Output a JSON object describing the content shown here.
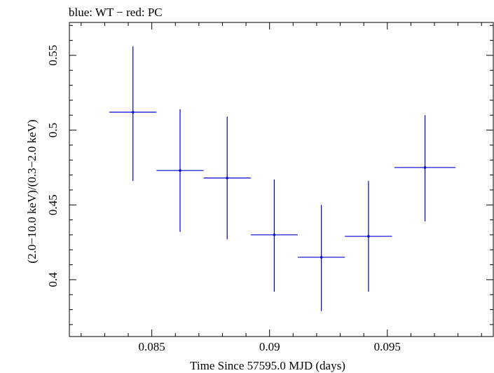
{
  "chart_data": {
    "type": "scatter",
    "title": "blue: WT − red: PC",
    "xlabel": "Time Since 57595.0 MJD (days)",
    "ylabel": "(2.0−10.0 keV)/(0.3−2.0 keV)",
    "xlim": [
      0.0815,
      0.0995
    ],
    "ylim": [
      0.362,
      0.572
    ],
    "x_ticks": [
      0.085,
      0.09,
      0.095
    ],
    "x_tick_labels": [
      "0.085",
      "0.09",
      "0.095"
    ],
    "y_ticks": [
      0.4,
      0.45,
      0.5,
      0.55
    ],
    "y_tick_labels": [
      "0.4",
      "0.45",
      "0.5",
      "0.55"
    ],
    "grid": false,
    "series": [
      {
        "color": "#0000cc",
        "points": [
          {
            "x": 0.0842,
            "y": 0.512,
            "xerr": 0.001,
            "ylo": 0.466,
            "yhi": 0.556
          },
          {
            "x": 0.0862,
            "y": 0.473,
            "xerr": 0.001,
            "ylo": 0.432,
            "yhi": 0.514
          },
          {
            "x": 0.0882,
            "y": 0.468,
            "xerr": 0.001,
            "ylo": 0.427,
            "yhi": 0.509
          },
          {
            "x": 0.0902,
            "y": 0.43,
            "xerr": 0.001,
            "ylo": 0.392,
            "yhi": 0.467
          },
          {
            "x": 0.0922,
            "y": 0.415,
            "xerr": 0.001,
            "ylo": 0.379,
            "yhi": 0.45
          },
          {
            "x": 0.0942,
            "y": 0.429,
            "xerr": 0.001,
            "ylo": 0.392,
            "yhi": 0.466
          },
          {
            "x": 0.0966,
            "y": 0.475,
            "xerr": 0.0013,
            "ylo": 0.439,
            "yhi": 0.51
          }
        ]
      }
    ]
  }
}
